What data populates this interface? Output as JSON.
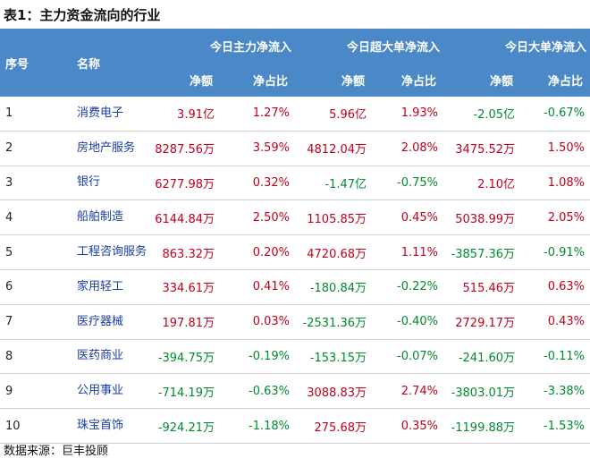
{
  "title": "表1：主力资金流向的行业",
  "header": {
    "index_label": "序号",
    "name_label": "名称",
    "groups": [
      "今日主力净流入",
      "今日超大单净流入",
      "今日大单净流入"
    ],
    "sub_labels": [
      "净额",
      "净占比",
      "净额",
      "净占比",
      "净额",
      "净占比"
    ]
  },
  "rows": [
    {
      "index": "1",
      "name": "消费电子",
      "cells": [
        "3.91亿",
        "1.27%",
        "5.96亿",
        "1.93%",
        "-2.05亿",
        "-0.67%"
      ]
    },
    {
      "index": "2",
      "name": "房地产服务",
      "cells": [
        "8287.56万",
        "3.59%",
        "4812.04万",
        "2.08%",
        "3475.52万",
        "1.50%"
      ]
    },
    {
      "index": "3",
      "name": "银行",
      "cells": [
        "6277.98万",
        "0.32%",
        "-1.47亿",
        "-0.75%",
        "2.10亿",
        "1.08%"
      ]
    },
    {
      "index": "4",
      "name": "船舶制造",
      "cells": [
        "6144.84万",
        "2.50%",
        "1105.85万",
        "0.45%",
        "5038.99万",
        "2.05%"
      ]
    },
    {
      "index": "5",
      "name": "工程咨询服务",
      "cells": [
        "863.32万",
        "0.20%",
        "4720.68万",
        "1.11%",
        "-3857.36万",
        "-0.91%"
      ]
    },
    {
      "index": "6",
      "name": "家用轻工",
      "cells": [
        "334.61万",
        "0.41%",
        "-180.84万",
        "-0.22%",
        "515.46万",
        "0.63%"
      ]
    },
    {
      "index": "7",
      "name": "医疗器械",
      "cells": [
        "197.81万",
        "0.03%",
        "-2531.36万",
        "-0.40%",
        "2729.17万",
        "0.43%"
      ]
    },
    {
      "index": "8",
      "name": "医药商业",
      "cells": [
        "-394.75万",
        "-0.19%",
        "-153.15万",
        "-0.07%",
        "-241.60万",
        "-0.11%"
      ]
    },
    {
      "index": "9",
      "name": "公用事业",
      "cells": [
        "-714.19万",
        "-0.63%",
        "3088.83万",
        "2.74%",
        "-3803.01万",
        "-3.38%"
      ]
    },
    {
      "index": "10",
      "name": "珠宝首饰",
      "cells": [
        "-924.21万",
        "-1.18%",
        "275.68万",
        "0.35%",
        "-1199.88万",
        "-1.53%"
      ]
    }
  ],
  "source": "数据来源：巨丰投顾",
  "colors": {
    "header_bg": "#4a88c7",
    "positive": "#c0001b",
    "negative": "#008a2e",
    "name_text": "#1a3da6"
  }
}
